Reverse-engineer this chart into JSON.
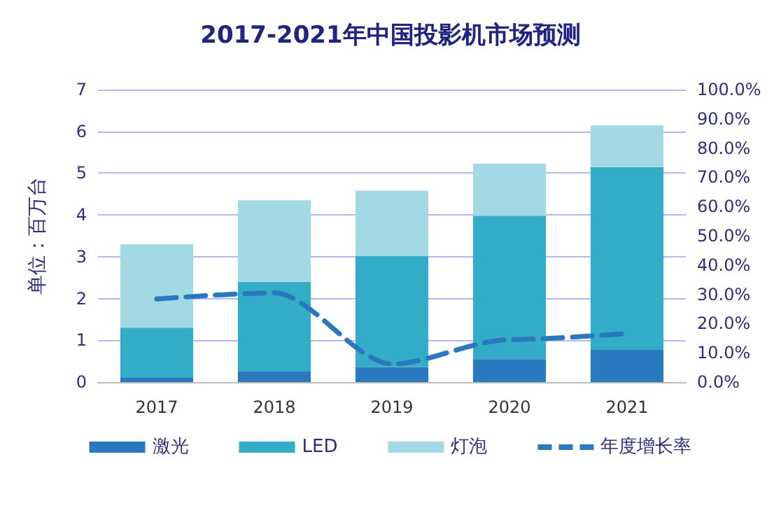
{
  "chart_data": {
    "type": "bar",
    "title": "2017-2021年中国投影机市场预测",
    "ylabel": "单位：百万台",
    "categories": [
      "2017",
      "2018",
      "2019",
      "2020",
      "2021"
    ],
    "stacked": true,
    "series": [
      {
        "name": "激光",
        "color": "#2a78bd",
        "values": [
          0.1,
          0.25,
          0.36,
          0.55,
          0.77
        ]
      },
      {
        "name": "LED",
        "color": "#33adc7",
        "values": [
          1.2,
          2.15,
          2.66,
          3.43,
          4.37
        ]
      },
      {
        "name": "灯泡",
        "color": "#a3d9e5",
        "values": [
          2.0,
          1.95,
          1.56,
          1.25,
          1.0
        ]
      },
      {
        "name": "年度增长率",
        "type": "line",
        "axis": "y2",
        "color": "#2a78bd",
        "line_style": "dashed",
        "marker": "none",
        "values": [
          28.4,
          30.5,
          6.2,
          14.5,
          16.6
        ]
      }
    ],
    "ylim": [
      0,
      7
    ],
    "yticks": [
      0,
      1,
      2,
      3,
      4,
      5,
      6,
      7
    ],
    "y2lim": [
      0,
      100
    ],
    "y2ticks": [
      {
        "value": 0,
        "label": "0.0%"
      },
      {
        "value": 10,
        "label": "10.0%"
      },
      {
        "value": 20,
        "label": "20.0%"
      },
      {
        "value": 30,
        "label": "30.0%"
      },
      {
        "value": 40,
        "label": "40.0%"
      },
      {
        "value": 50,
        "label": "50.0%"
      },
      {
        "value": 60,
        "label": "60.0%"
      },
      {
        "value": 70,
        "label": "70.0%"
      },
      {
        "value": 80,
        "label": "80.0%"
      },
      {
        "value": 90,
        "label": "90.0%"
      },
      {
        "value": 100,
        "label": "100.0%"
      }
    ],
    "grid": "y",
    "legend": "bottom"
  }
}
